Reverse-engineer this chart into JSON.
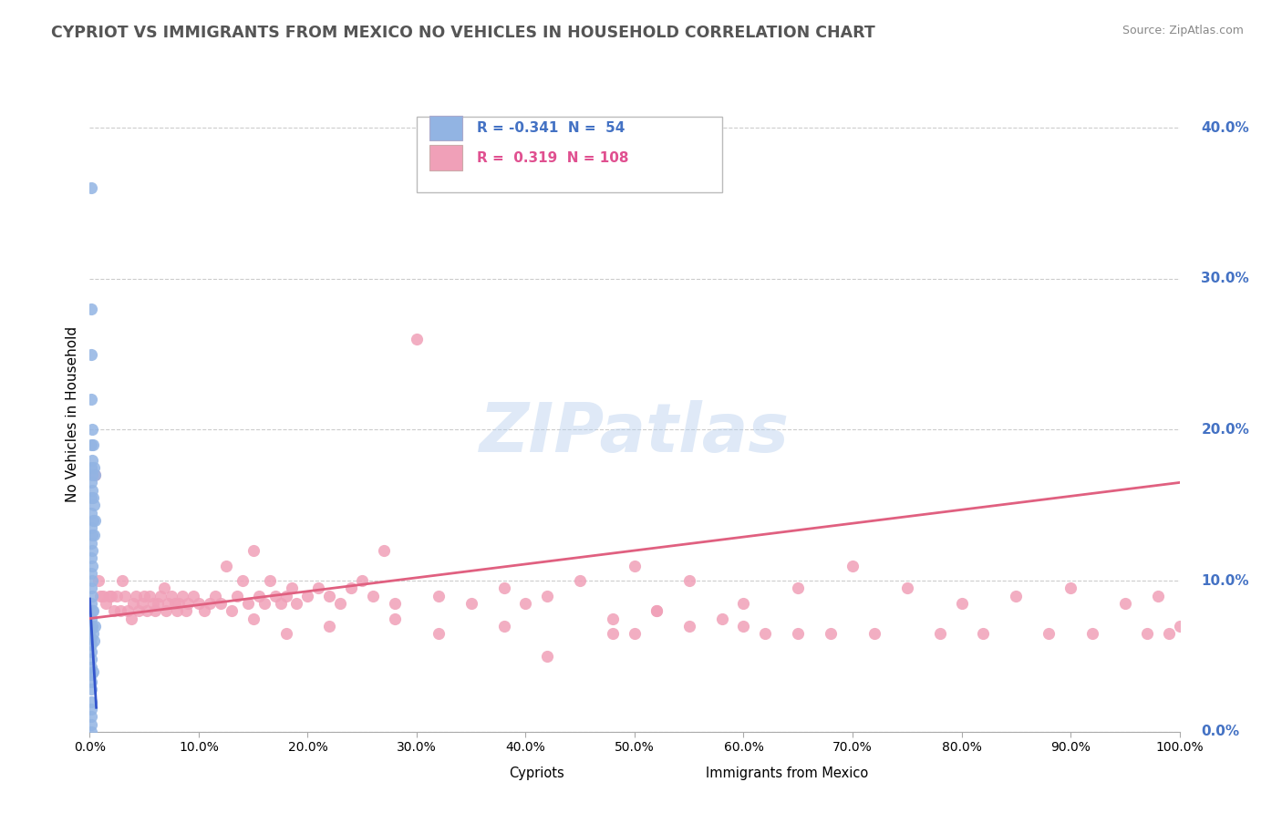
{
  "title": "CYPRIOT VS IMMIGRANTS FROM MEXICO NO VEHICLES IN HOUSEHOLD CORRELATION CHART",
  "source_text": "Source: ZipAtlas.com",
  "ylabel": "No Vehicles in Household",
  "watermark": "ZIPatlas",
  "xlim": [
    0.0,
    1.0
  ],
  "ylim": [
    0.0,
    0.42
  ],
  "xticks": [
    0.0,
    0.1,
    0.2,
    0.3,
    0.4,
    0.5,
    0.6,
    0.7,
    0.8,
    0.9,
    1.0
  ],
  "yticks": [
    0.0,
    0.1,
    0.2,
    0.3,
    0.4
  ],
  "blue_R": -0.341,
  "blue_N": 54,
  "pink_R": 0.319,
  "pink_N": 108,
  "blue_color": "#92b4e3",
  "pink_color": "#f0a0b8",
  "blue_line_color": "#3355cc",
  "pink_line_color": "#e06080",
  "legend_label_blue": "Cypriots",
  "legend_label_pink": "Immigrants from Mexico",
  "blue_x": [
    0.001,
    0.001,
    0.001,
    0.001,
    0.001,
    0.001,
    0.001,
    0.001,
    0.001,
    0.001,
    0.001,
    0.001,
    0.001,
    0.001,
    0.001,
    0.001,
    0.001,
    0.001,
    0.001,
    0.001,
    0.001,
    0.001,
    0.001,
    0.001,
    0.001,
    0.001,
    0.001,
    0.001,
    0.001,
    0.001,
    0.002,
    0.002,
    0.002,
    0.002,
    0.002,
    0.002,
    0.002,
    0.002,
    0.002,
    0.002,
    0.002,
    0.003,
    0.003,
    0.003,
    0.003,
    0.003,
    0.003,
    0.004,
    0.004,
    0.004,
    0.004,
    0.005,
    0.005,
    0.005
  ],
  "blue_y": [
    0.36,
    0.28,
    0.25,
    0.22,
    0.19,
    0.175,
    0.165,
    0.155,
    0.145,
    0.135,
    0.125,
    0.115,
    0.105,
    0.095,
    0.085,
    0.075,
    0.068,
    0.062,
    0.058,
    0.053,
    0.048,
    0.043,
    0.038,
    0.033,
    0.028,
    0.02,
    0.015,
    0.01,
    0.005,
    0.0,
    0.2,
    0.18,
    0.17,
    0.16,
    0.13,
    0.12,
    0.11,
    0.1,
    0.09,
    0.08,
    0.07,
    0.19,
    0.155,
    0.14,
    0.08,
    0.065,
    0.04,
    0.175,
    0.15,
    0.13,
    0.06,
    0.17,
    0.14,
    0.07
  ],
  "pink_x": [
    0.005,
    0.008,
    0.01,
    0.012,
    0.015,
    0.018,
    0.02,
    0.022,
    0.025,
    0.028,
    0.03,
    0.032,
    0.035,
    0.038,
    0.04,
    0.042,
    0.045,
    0.048,
    0.05,
    0.052,
    0.055,
    0.058,
    0.06,
    0.062,
    0.065,
    0.068,
    0.07,
    0.072,
    0.075,
    0.078,
    0.08,
    0.082,
    0.085,
    0.088,
    0.09,
    0.095,
    0.1,
    0.105,
    0.11,
    0.115,
    0.12,
    0.125,
    0.13,
    0.135,
    0.14,
    0.145,
    0.15,
    0.155,
    0.16,
    0.165,
    0.17,
    0.175,
    0.18,
    0.185,
    0.19,
    0.2,
    0.21,
    0.22,
    0.23,
    0.24,
    0.25,
    0.26,
    0.27,
    0.28,
    0.3,
    0.32,
    0.35,
    0.38,
    0.4,
    0.42,
    0.45,
    0.48,
    0.5,
    0.52,
    0.55,
    0.58,
    0.6,
    0.62,
    0.65,
    0.68,
    0.7,
    0.72,
    0.75,
    0.78,
    0.8,
    0.82,
    0.85,
    0.88,
    0.9,
    0.92,
    0.95,
    0.97,
    0.98,
    0.99,
    1.0,
    0.5,
    0.52,
    0.15,
    0.18,
    0.22,
    0.28,
    0.32,
    0.38,
    0.42,
    0.48,
    0.55,
    0.6,
    0.65
  ],
  "pink_y": [
    0.17,
    0.1,
    0.09,
    0.09,
    0.085,
    0.09,
    0.09,
    0.08,
    0.09,
    0.08,
    0.1,
    0.09,
    0.08,
    0.075,
    0.085,
    0.09,
    0.08,
    0.085,
    0.09,
    0.08,
    0.09,
    0.085,
    0.08,
    0.085,
    0.09,
    0.095,
    0.08,
    0.085,
    0.09,
    0.085,
    0.08,
    0.085,
    0.09,
    0.08,
    0.085,
    0.09,
    0.085,
    0.08,
    0.085,
    0.09,
    0.085,
    0.11,
    0.08,
    0.09,
    0.1,
    0.085,
    0.12,
    0.09,
    0.085,
    0.1,
    0.09,
    0.085,
    0.09,
    0.095,
    0.085,
    0.09,
    0.095,
    0.09,
    0.085,
    0.095,
    0.1,
    0.09,
    0.12,
    0.085,
    0.26,
    0.09,
    0.085,
    0.095,
    0.085,
    0.09,
    0.1,
    0.075,
    0.11,
    0.08,
    0.1,
    0.075,
    0.085,
    0.065,
    0.095,
    0.065,
    0.11,
    0.065,
    0.095,
    0.065,
    0.085,
    0.065,
    0.09,
    0.065,
    0.095,
    0.065,
    0.085,
    0.065,
    0.09,
    0.065,
    0.07,
    0.065,
    0.08,
    0.075,
    0.065,
    0.07,
    0.075,
    0.065,
    0.07,
    0.05,
    0.065,
    0.07,
    0.07,
    0.065
  ]
}
